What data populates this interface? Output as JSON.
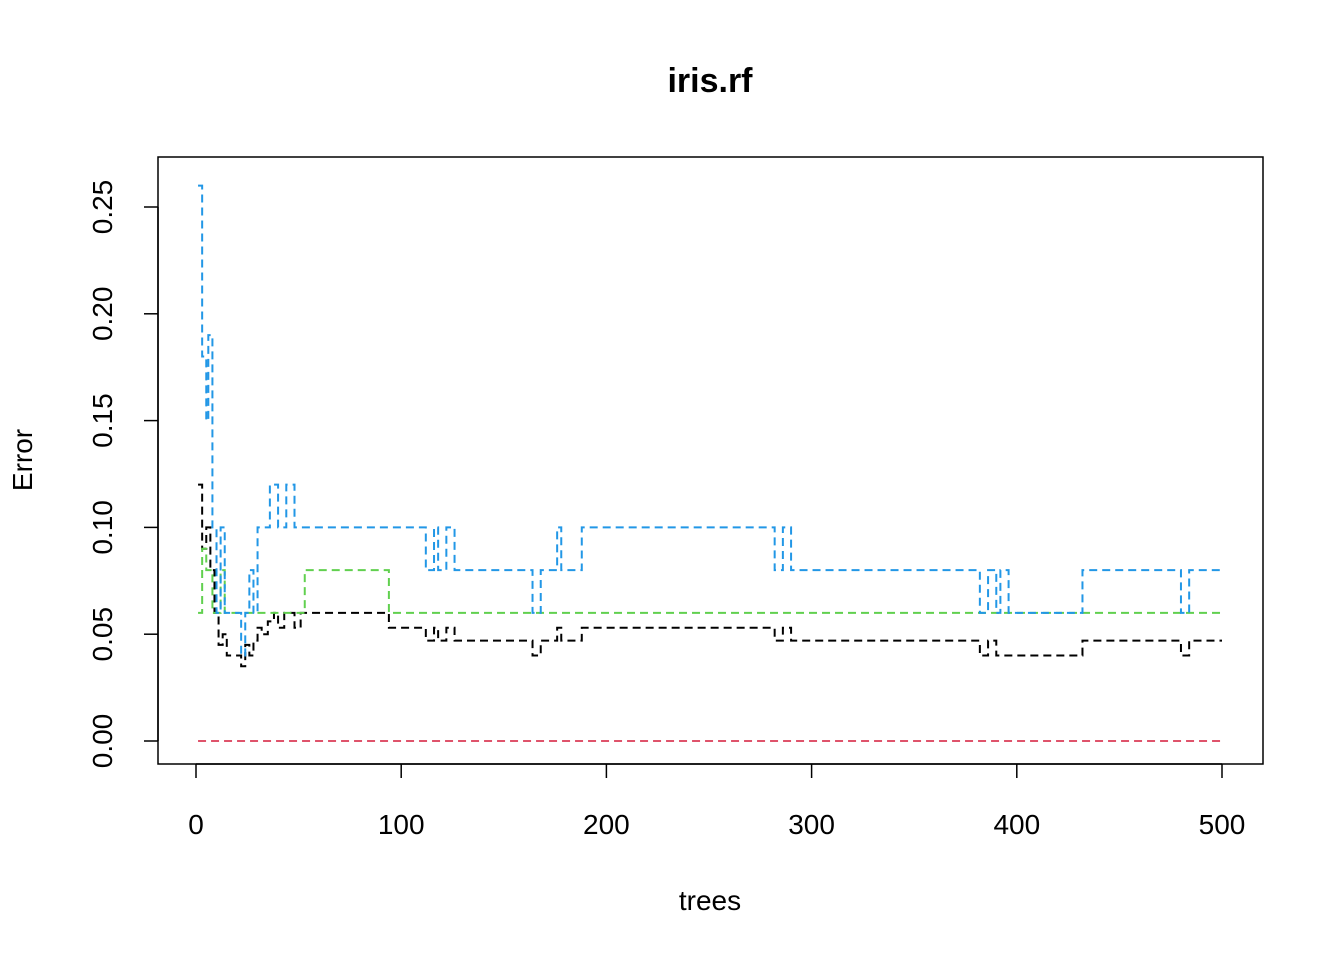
{
  "chart_data": {
    "type": "line",
    "title": "iris.rf",
    "xlabel": "trees",
    "ylabel": "Error",
    "xlim": [
      0,
      500
    ],
    "ylim": [
      0,
      0.25
    ],
    "xticks": [
      0,
      100,
      200,
      300,
      400,
      500
    ],
    "xtick_labels": [
      "0",
      "100",
      "200",
      "300",
      "400",
      "500"
    ],
    "yticks": [
      0,
      0.05,
      0.1,
      0.15,
      0.2,
      0.25
    ],
    "ytick_labels": [
      "0.00",
      "0.05",
      "0.10",
      "0.15",
      "0.20",
      "0.25"
    ],
    "grid": false,
    "legend": "none",
    "line_style": "dashed",
    "series": [
      {
        "color": "#000000",
        "points": [
          [
            1,
            0.12
          ],
          [
            3,
            0.09
          ],
          [
            5,
            0.1
          ],
          [
            7,
            0.08
          ],
          [
            9,
            0.06
          ],
          [
            11,
            0.045
          ],
          [
            13,
            0.05
          ],
          [
            15,
            0.04
          ],
          [
            20,
            0.04
          ],
          [
            22,
            0.035
          ],
          [
            24,
            0.045
          ],
          [
            26,
            0.04
          ],
          [
            28,
            0.047
          ],
          [
            30,
            0.053
          ],
          [
            32,
            0.05
          ],
          [
            35,
            0.056
          ],
          [
            38,
            0.06
          ],
          [
            40,
            0.053
          ],
          [
            43,
            0.06
          ],
          [
            48,
            0.053
          ],
          [
            51,
            0.06
          ],
          [
            91,
            0.06
          ],
          [
            94,
            0.053
          ],
          [
            110,
            0.053
          ],
          [
            112,
            0.047
          ],
          [
            116,
            0.053
          ],
          [
            118,
            0.047
          ],
          [
            122,
            0.053
          ],
          [
            126,
            0.047
          ],
          [
            162,
            0.047
          ],
          [
            164,
            0.04
          ],
          [
            168,
            0.047
          ],
          [
            176,
            0.053
          ],
          [
            178,
            0.047
          ],
          [
            188,
            0.053
          ],
          [
            280,
            0.053
          ],
          [
            282,
            0.047
          ],
          [
            286,
            0.053
          ],
          [
            290,
            0.047
          ],
          [
            380,
            0.047
          ],
          [
            382,
            0.04
          ],
          [
            386,
            0.047
          ],
          [
            390,
            0.04
          ],
          [
            396,
            0.04
          ],
          [
            430,
            0.04
          ],
          [
            432,
            0.047
          ],
          [
            440,
            0.047
          ],
          [
            478,
            0.047
          ],
          [
            480,
            0.04
          ],
          [
            484,
            0.047
          ],
          [
            500,
            0.047
          ]
        ]
      },
      {
        "color": "#DF536B",
        "points": [
          [
            1,
            0.0
          ],
          [
            500,
            0.0
          ]
        ]
      },
      {
        "color": "#61D04F",
        "points": [
          [
            1,
            0.06
          ],
          [
            3,
            0.09
          ],
          [
            5,
            0.08
          ],
          [
            8,
            0.06
          ],
          [
            10,
            0.06
          ],
          [
            12,
            0.08
          ],
          [
            14,
            0.06
          ],
          [
            50,
            0.06
          ],
          [
            53,
            0.08
          ],
          [
            92,
            0.08
          ],
          [
            94,
            0.06
          ],
          [
            500,
            0.06
          ]
        ]
      },
      {
        "color": "#2297E6",
        "points": [
          [
            1,
            0.26
          ],
          [
            3,
            0.18
          ],
          [
            5,
            0.15
          ],
          [
            6,
            0.19
          ],
          [
            8,
            0.1
          ],
          [
            10,
            0.06
          ],
          [
            12,
            0.1
          ],
          [
            14,
            0.06
          ],
          [
            20,
            0.06
          ],
          [
            22,
            0.04
          ],
          [
            24,
            0.06
          ],
          [
            26,
            0.08
          ],
          [
            28,
            0.06
          ],
          [
            30,
            0.1
          ],
          [
            34,
            0.1
          ],
          [
            36,
            0.12
          ],
          [
            40,
            0.1
          ],
          [
            44,
            0.12
          ],
          [
            47,
            0.12
          ],
          [
            48,
            0.1
          ],
          [
            110,
            0.1
          ],
          [
            112,
            0.08
          ],
          [
            116,
            0.1
          ],
          [
            118,
            0.08
          ],
          [
            122,
            0.1
          ],
          [
            126,
            0.08
          ],
          [
            162,
            0.08
          ],
          [
            164,
            0.06
          ],
          [
            168,
            0.08
          ],
          [
            176,
            0.1
          ],
          [
            178,
            0.08
          ],
          [
            188,
            0.1
          ],
          [
            280,
            0.1
          ],
          [
            282,
            0.08
          ],
          [
            286,
            0.1
          ],
          [
            290,
            0.08
          ],
          [
            380,
            0.08
          ],
          [
            382,
            0.06
          ],
          [
            386,
            0.08
          ],
          [
            390,
            0.06
          ],
          [
            392,
            0.08
          ],
          [
            396,
            0.06
          ],
          [
            430,
            0.06
          ],
          [
            432,
            0.08
          ],
          [
            440,
            0.08
          ],
          [
            478,
            0.08
          ],
          [
            480,
            0.06
          ],
          [
            484,
            0.08
          ],
          [
            500,
            0.08
          ]
        ]
      }
    ]
  }
}
